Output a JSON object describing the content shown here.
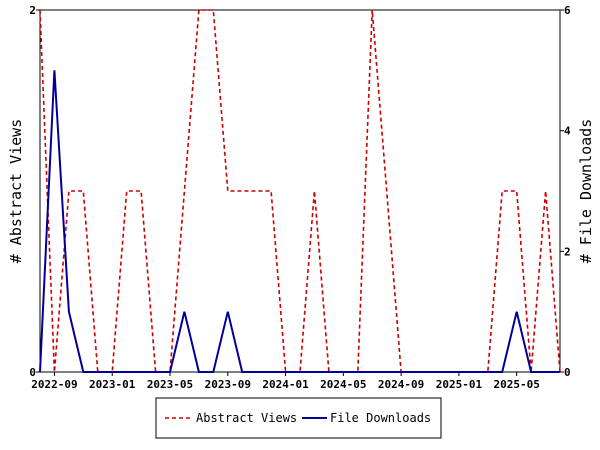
{
  "chart_data": {
    "type": "line",
    "x_ticks": [
      "2022-09",
      "2023-01",
      "2023-05",
      "2023-09",
      "2024-01",
      "2024-05",
      "2024-09",
      "2025-01",
      "2025-05"
    ],
    "y_left": {
      "label": "# Abstract Views",
      "ticks": [
        "0",
        "2"
      ],
      "range": [
        0,
        2
      ]
    },
    "y_right": {
      "label": "# File Downloads",
      "ticks": [
        "0",
        "2",
        "4",
        "6"
      ],
      "range": [
        0,
        6
      ]
    },
    "x_range": [
      "2022-08",
      "2025-08"
    ],
    "grid": false,
    "legend_position": "bottom",
    "series": [
      {
        "name": "Abstract Views",
        "axis": "left",
        "color": "#cc0000",
        "style": "dashed",
        "x": [
          "2022-08",
          "2022-09",
          "2022-10",
          "2022-11",
          "2022-12",
          "2023-01",
          "2023-02",
          "2023-03",
          "2023-04",
          "2023-05",
          "2023-06",
          "2023-07",
          "2023-08",
          "2023-09",
          "2023-10",
          "2023-11",
          "2023-12",
          "2024-01",
          "2024-02",
          "2024-03",
          "2024-04",
          "2024-05",
          "2024-06",
          "2024-07",
          "2024-08",
          "2024-09",
          "2024-10",
          "2024-11",
          "2024-12",
          "2025-01",
          "2025-02",
          "2025-03",
          "2025-04",
          "2025-05",
          "2025-06",
          "2025-07",
          "2025-08"
        ],
        "values": [
          2,
          0,
          1,
          1,
          0,
          0,
          1,
          1,
          0,
          0,
          1,
          2,
          2,
          1,
          1,
          1,
          1,
          0,
          0,
          1,
          0,
          0,
          0,
          2,
          1,
          0,
          0,
          0,
          0,
          0,
          0,
          0,
          1,
          1,
          0,
          1,
          0
        ]
      },
      {
        "name": "File Downloads",
        "axis": "right",
        "color": "#000099",
        "style": "solid",
        "x": [
          "2022-08",
          "2022-09",
          "2022-10",
          "2022-11",
          "2022-12",
          "2023-01",
          "2023-02",
          "2023-03",
          "2023-04",
          "2023-05",
          "2023-06",
          "2023-07",
          "2023-08",
          "2023-09",
          "2023-10",
          "2023-11",
          "2023-12",
          "2024-01",
          "2024-02",
          "2024-03",
          "2024-04",
          "2024-05",
          "2024-06",
          "2024-07",
          "2024-08",
          "2024-09",
          "2024-10",
          "2024-11",
          "2024-12",
          "2025-01",
          "2025-02",
          "2025-03",
          "2025-04",
          "2025-05",
          "2025-06",
          "2025-07",
          "2025-08"
        ],
        "values": [
          0,
          5,
          1,
          0,
          0,
          0,
          0,
          0,
          0,
          0,
          1,
          0,
          0,
          1,
          0,
          0,
          0,
          0,
          0,
          0,
          0,
          0,
          0,
          0,
          0,
          0,
          0,
          0,
          0,
          0,
          0,
          0,
          0,
          1,
          0,
          0,
          0
        ]
      }
    ]
  }
}
